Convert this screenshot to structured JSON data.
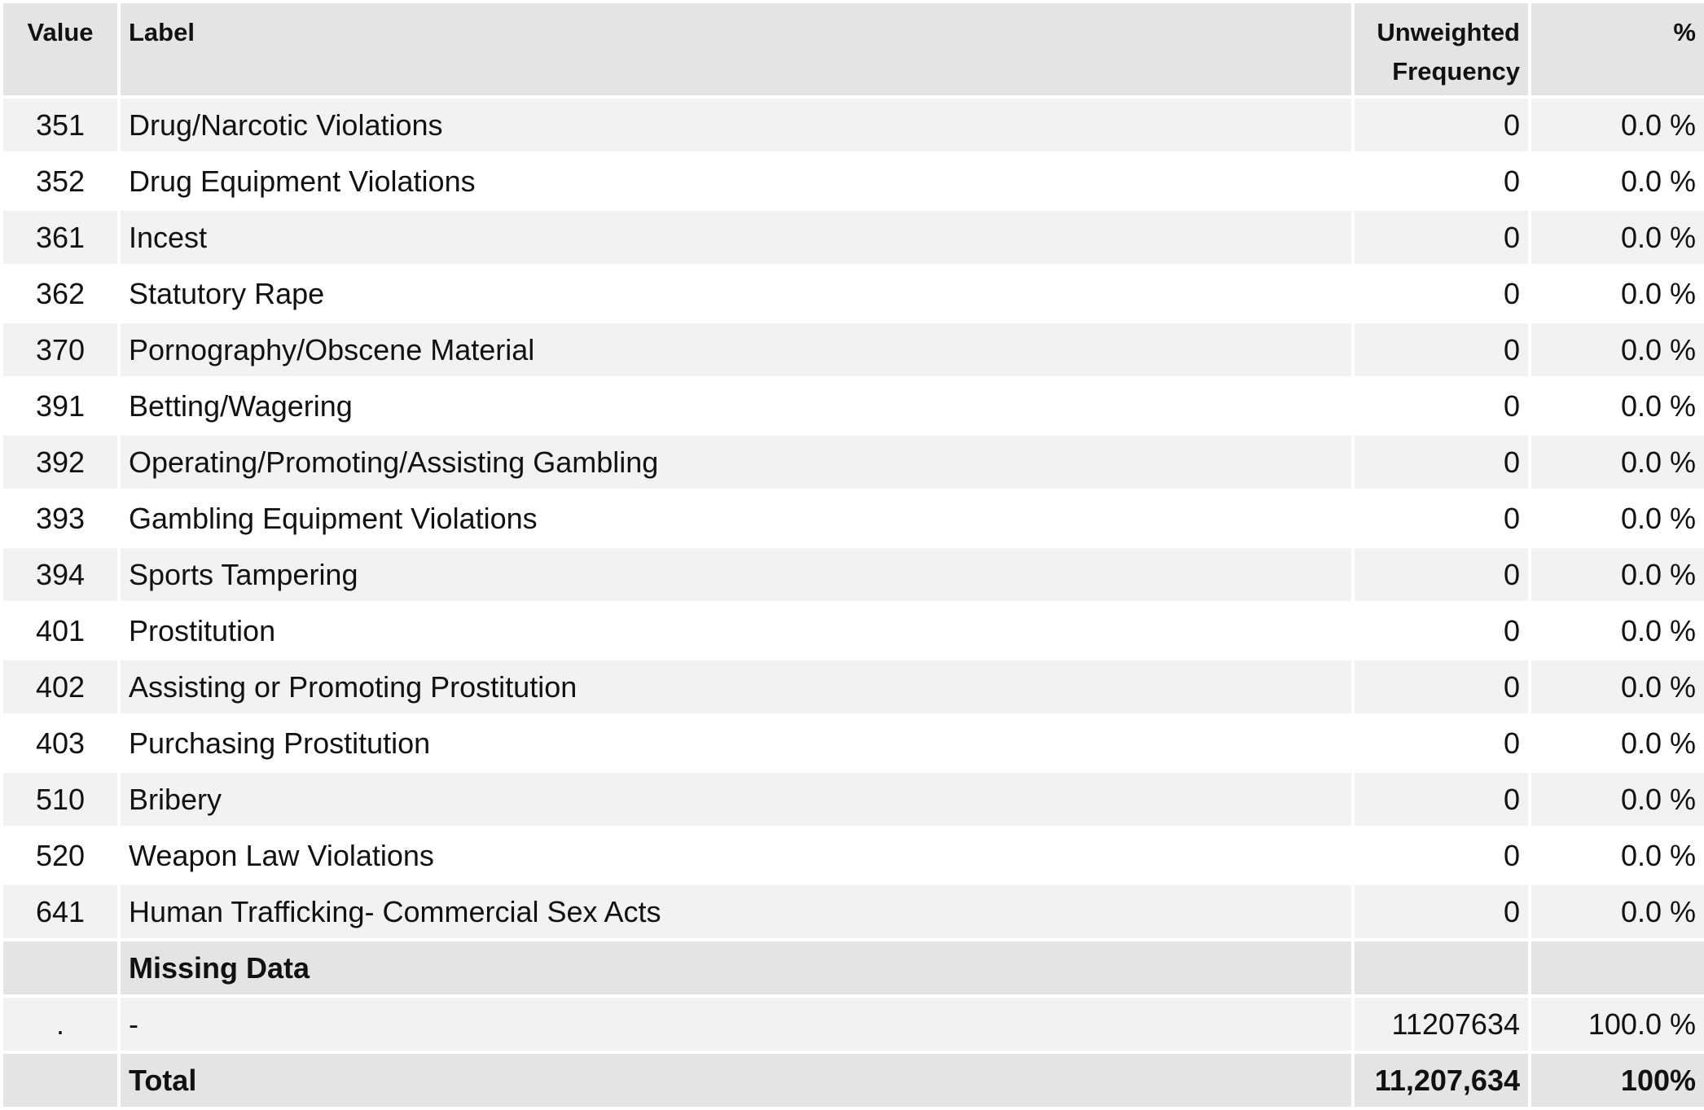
{
  "table": {
    "headers": {
      "value": "Value",
      "label": "Label",
      "freq_line1": "Unweighted",
      "freq_line2": "Frequency",
      "pct": "%"
    },
    "rows": [
      {
        "value": "351",
        "label": "Drug/Narcotic Violations",
        "freq": "0",
        "pct": "0.0 %"
      },
      {
        "value": "352",
        "label": "Drug Equipment Violations",
        "freq": "0",
        "pct": "0.0 %"
      },
      {
        "value": "361",
        "label": "Incest",
        "freq": "0",
        "pct": "0.0 %"
      },
      {
        "value": "362",
        "label": "Statutory Rape",
        "freq": "0",
        "pct": "0.0 %"
      },
      {
        "value": "370",
        "label": "Pornography/Obscene Material",
        "freq": "0",
        "pct": "0.0 %"
      },
      {
        "value": "391",
        "label": "Betting/Wagering",
        "freq": "0",
        "pct": "0.0 %"
      },
      {
        "value": "392",
        "label": "Operating/Promoting/Assisting Gambling",
        "freq": "0",
        "pct": "0.0 %"
      },
      {
        "value": "393",
        "label": "Gambling Equipment Violations",
        "freq": "0",
        "pct": "0.0 %"
      },
      {
        "value": "394",
        "label": "Sports Tampering",
        "freq": "0",
        "pct": "0.0 %"
      },
      {
        "value": "401",
        "label": "Prostitution",
        "freq": "0",
        "pct": "0.0 %"
      },
      {
        "value": "402",
        "label": "Assisting or Promoting Prostitution",
        "freq": "0",
        "pct": "0.0 %"
      },
      {
        "value": "403",
        "label": "Purchasing Prostitution",
        "freq": "0",
        "pct": "0.0 %"
      },
      {
        "value": "510",
        "label": "Bribery",
        "freq": "0",
        "pct": "0.0 %"
      },
      {
        "value": "520",
        "label": "Weapon Law Violations",
        "freq": "0",
        "pct": "0.0 %"
      },
      {
        "value": "641",
        "label": "Human Trafficking- Commercial Sex Acts",
        "freq": "0",
        "pct": "0.0 %"
      }
    ],
    "missing_section": {
      "label": "Missing Data"
    },
    "missing_rows": [
      {
        "value": ".",
        "label": "-",
        "freq": "11207634",
        "pct": "100.0 %"
      }
    ],
    "total": {
      "value": "",
      "label": "Total",
      "freq": "11,207,634",
      "pct": "100%"
    }
  },
  "colors": {
    "header_bg": "#e4e4e4",
    "row_odd_bg": "#f2f2f2",
    "row_even_bg": "#ffffff",
    "text": "#111111"
  }
}
